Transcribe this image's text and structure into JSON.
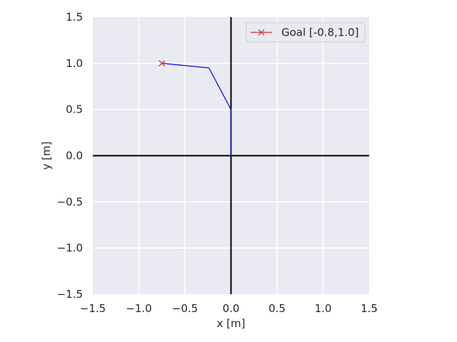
{
  "chart_data": {
    "type": "line",
    "xlabel": "x [m]",
    "ylabel": "y [m]",
    "xlim": [
      -1.5,
      1.5
    ],
    "ylim": [
      -1.5,
      1.5
    ],
    "xticks": [
      -1.5,
      -1.0,
      -0.5,
      0.0,
      0.5,
      1.0,
      1.5
    ],
    "yticks": [
      -1.5,
      -1.0,
      -0.5,
      0.0,
      0.5,
      1.0,
      1.5
    ],
    "xtick_labels": [
      "−1.5",
      "−1.0",
      "−0.5",
      "0.0",
      "0.5",
      "1.0",
      "1.5"
    ],
    "ytick_labels": [
      "−1.5",
      "−1.0",
      "−0.5",
      "0.0",
      "0.5",
      "1.0",
      "1.5"
    ],
    "grid": true,
    "legend_position": "top-right",
    "series": [
      {
        "type": "line",
        "color": "#1f1fe0",
        "x": [
          0.0,
          0.0,
          -0.24,
          -0.75
        ],
        "y": [
          0.0,
          0.5,
          0.95,
          1.0
        ]
      },
      {
        "name": "Goal [-0.8,1.0]",
        "type": "marker",
        "marker": "x",
        "color": "#c44e52",
        "x": [
          -0.75
        ],
        "y": [
          1.0
        ]
      }
    ],
    "reference_lines": {
      "x0_vertical": true,
      "y0_horizontal": true,
      "color": "#000000"
    },
    "colors": {
      "plot_background": "#eaeaf2",
      "grid": "#ffffff",
      "legend_border": "#cccccc"
    }
  }
}
